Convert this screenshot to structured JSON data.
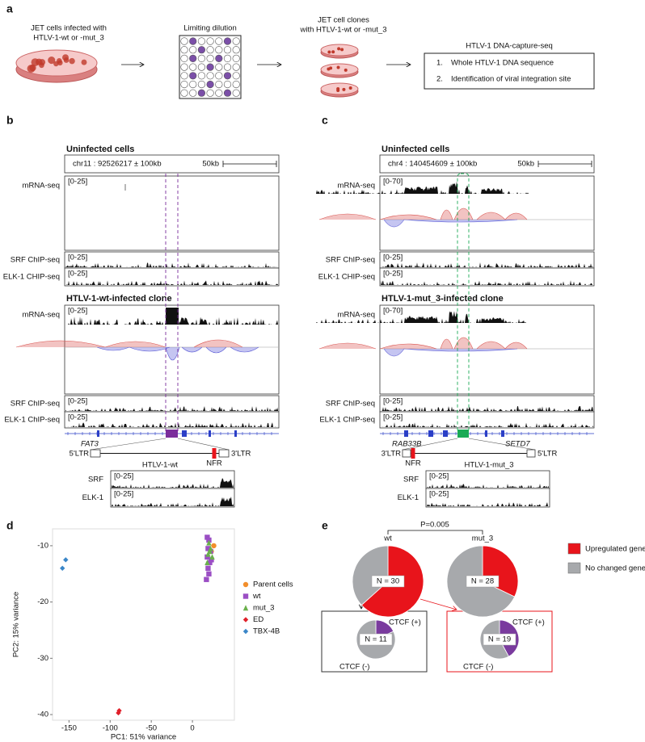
{
  "panel_a": {
    "label": "a",
    "step1": [
      "JET cells infected with",
      "HTLV-1-wt or -mut_3"
    ],
    "step2": "Limiting dilution",
    "step3": [
      "JET cell clones",
      "with HTLV-1-wt or -mut_3"
    ],
    "step4_title": "HTLV-1 DNA-capture-seq",
    "step4_items": [
      {
        "number": "1.",
        "text": "Whole HTLV-1 DNA sequence"
      },
      {
        "number": "2.",
        "text": "Identification of viral integration site"
      }
    ]
  },
  "panel_b": {
    "label": "b",
    "uninfected_title": "Uninfected cells",
    "locus": "chr11 : 92526217 ± 100kb",
    "scale": "50kb",
    "tracks_uninfected": [
      {
        "name": "mRNA-seq",
        "range": "[0-25]"
      },
      {
        "name": "SRF ChIP-seq",
        "range": "[0-25]"
      },
      {
        "name": "ELK-1 CHIP-seq",
        "range": "[0-25]"
      }
    ],
    "infected_title": "HTLV-1-wt-infected clone",
    "tracks_infected": [
      {
        "name": "mRNA-seq",
        "range": "[0-25]"
      },
      {
        "name": "SRF ChIP-seq",
        "range": "[0-25]"
      },
      {
        "name": "ELK-1 ChIP-seq",
        "range": "[0-25]"
      }
    ],
    "genes": [
      "FAT3"
    ],
    "provirus": {
      "left": "5'LTR",
      "right": "3'LTR",
      "name": "HTLV-1-wt",
      "nfr": "NFR"
    },
    "zoom_tracks": [
      {
        "name": "SRF",
        "range": "[0-25]"
      },
      {
        "name": "ELK-1",
        "range": "[0-25]"
      }
    ]
  },
  "panel_c": {
    "label": "c",
    "uninfected_title": "Uninfected cells",
    "locus": "chr4 : 140454609 ± 100kb",
    "scale": "50kb",
    "tracks_uninfected": [
      {
        "name": "mRNA-seq",
        "range": "[0-70]"
      },
      {
        "name": "SRF ChIP-seq",
        "range": "[0-25]"
      },
      {
        "name": "ELK-1 CHIP-seq",
        "range": "[0-25]"
      }
    ],
    "infected_title": "HTLV-1-mut_3-infected clone",
    "tracks_infected": [
      {
        "name": "mRNA-seq",
        "range": "[0-70]"
      },
      {
        "name": "SRF ChIP-seq",
        "range": "[0-25]"
      },
      {
        "name": "ELK-1 ChIP-seq",
        "range": "[0-25]"
      }
    ],
    "genes": [
      "RAB33B",
      "SETD7"
    ],
    "provirus": {
      "left": "3'LTR",
      "right": "5'LTR",
      "name": "HTLV-1-mut_3",
      "nfr": "NFR"
    },
    "zoom_tracks": [
      {
        "name": "SRF",
        "range": "[0-25]"
      },
      {
        "name": "ELK-1",
        "range": "[0-25]"
      }
    ]
  },
  "panel_d": {
    "label": "d"
  },
  "panel_e": {
    "label": "e",
    "pvalue": "P=0.005"
  },
  "chart_data": [
    {
      "type": "scatter",
      "xlabel": "PC1: 51% variance",
      "ylabel": "PC2: 15% variance",
      "xlim": [
        -170,
        51
      ],
      "ylim": [
        -41,
        -7
      ],
      "xticks": [
        -150,
        -100,
        -50,
        0
      ],
      "yticks": [
        -10,
        -20,
        -30,
        -40
      ],
      "grid": false,
      "legend": "right",
      "series": [
        {
          "name": "Parent cells",
          "color": "#f28e2b",
          "marker": "circle",
          "x": [
            26,
            23
          ],
          "y": [
            -10,
            -11
          ]
        },
        {
          "name": "wt",
          "color": "#9b4fc4",
          "marker": "square",
          "x": [
            18,
            20,
            19,
            22,
            18,
            21,
            19,
            20,
            17,
            23
          ],
          "y": [
            -8.5,
            -9,
            -10.5,
            -11,
            -12,
            -13,
            -14,
            -15,
            -16,
            -12.5
          ]
        },
        {
          "name": "mut_3",
          "color": "#6ab04c",
          "marker": "triangle",
          "x": [
            20,
            22,
            19,
            24,
            21,
            18
          ],
          "y": [
            -9.5,
            -10.5,
            -11.5,
            -12,
            -11,
            -13
          ]
        },
        {
          "name": "ED",
          "color": "#e0202a",
          "marker": "diamond",
          "x": [
            -89,
            -90
          ],
          "y": [
            -39.3,
            -39.7
          ]
        },
        {
          "name": "TBX-4B",
          "color": "#3a86c8",
          "marker": "diamond",
          "x": [
            -154,
            -158
          ],
          "y": [
            -12.5,
            -14
          ]
        }
      ]
    },
    {
      "type": "pie",
      "title": "wt",
      "label": "N = 30",
      "categories": [
        "Upregulated genes",
        "No changed genes"
      ],
      "values": [
        19,
        11
      ],
      "colors": [
        "#e8141b",
        "#a7a9ac"
      ],
      "legend": "right"
    },
    {
      "type": "pie",
      "title": "mut_3",
      "label": "N = 28",
      "categories": [
        "Upregulated genes",
        "No changed genes"
      ],
      "values": [
        9,
        19
      ],
      "colors": [
        "#e8141b",
        "#a7a9ac"
      ]
    },
    {
      "type": "pie",
      "label": "N = 11",
      "categories": [
        "CTCF (+)",
        "CTCF (-)"
      ],
      "values": [
        2,
        9
      ],
      "colors": [
        "#7a3b9e",
        "#a7a9ac"
      ]
    },
    {
      "type": "pie",
      "label": "N = 19",
      "categories": [
        "CTCF (+)",
        "CTCF (-)"
      ],
      "values": [
        8,
        11
      ],
      "colors": [
        "#7a3b9e",
        "#a7a9ac"
      ]
    }
  ]
}
